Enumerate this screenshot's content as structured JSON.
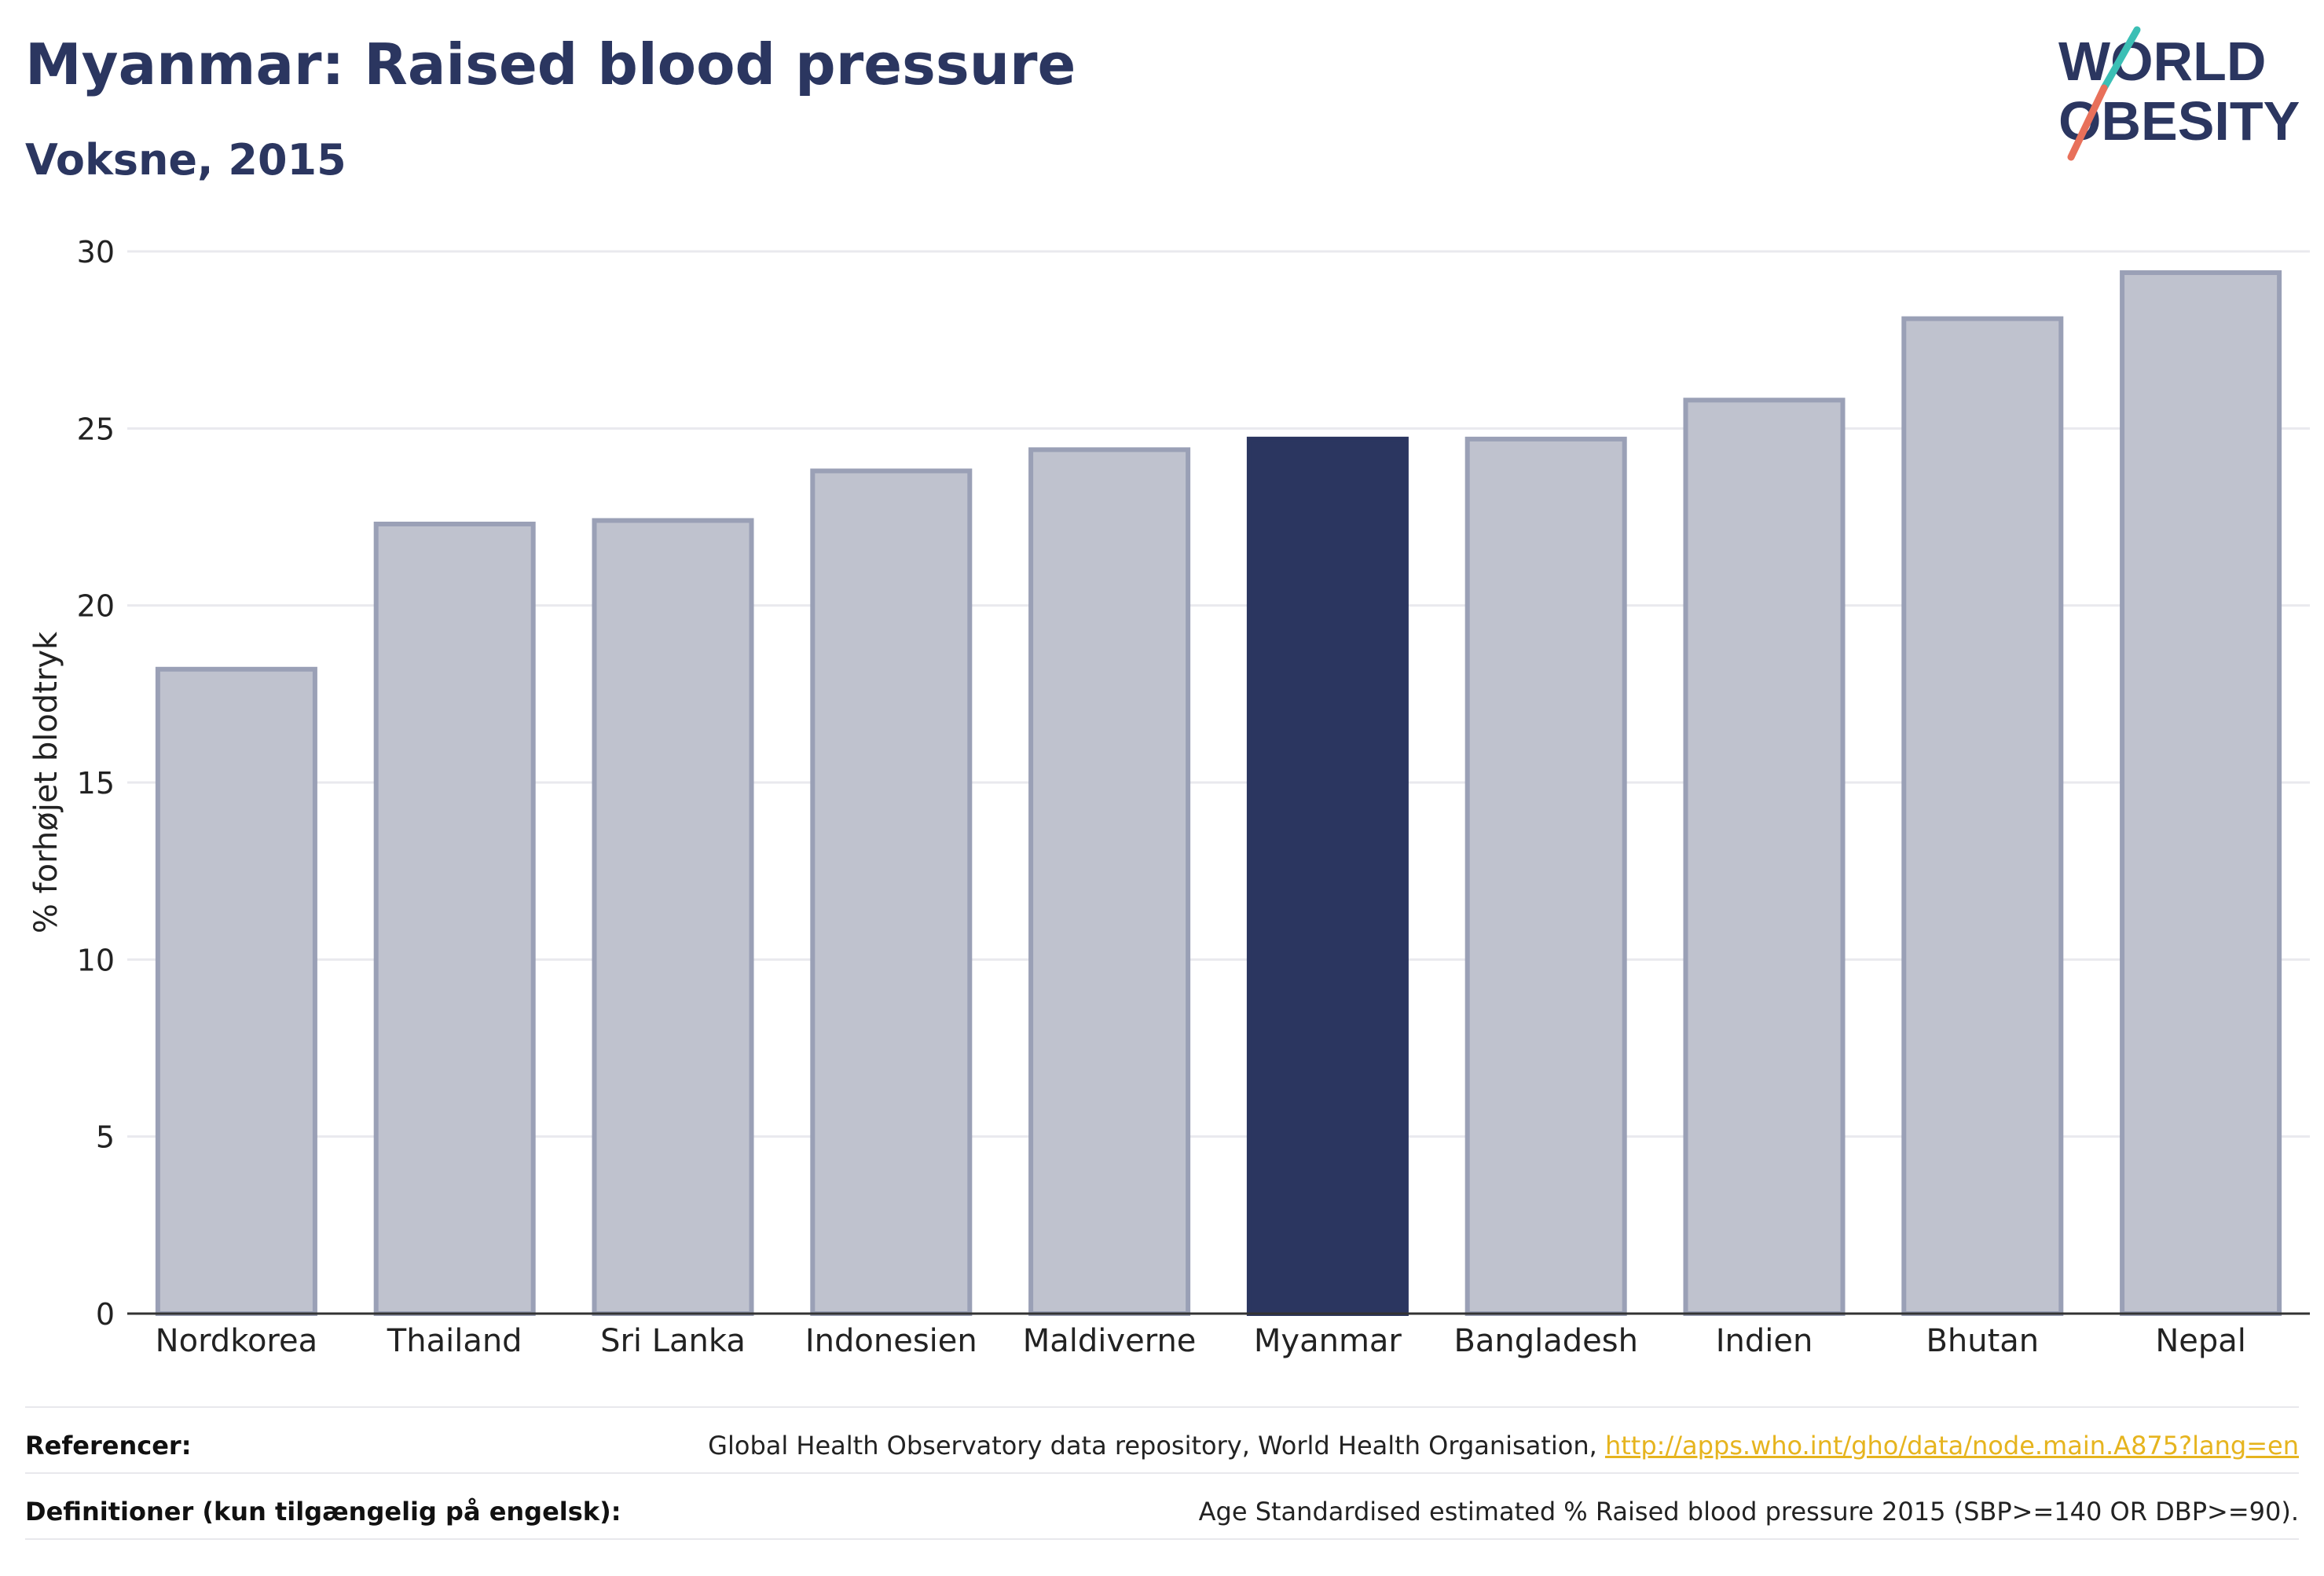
{
  "header": {
    "title": "Myanmar: Raised blood pressure",
    "subtitle": "Voksne, 2015"
  },
  "logo": {
    "line1": "WORLD",
    "line2": "OBESITY"
  },
  "colors": {
    "highlight": "#2b3660",
    "bar_fill": "#bfc2ce",
    "bar_stroke": "#9aa0b6",
    "grid": "#e9e9ee",
    "link": "#e6b41e",
    "logo_teal": "#3bbfb5",
    "logo_coral": "#e8705a"
  },
  "chart_data": {
    "type": "bar",
    "categories": [
      "Nordkorea",
      "Thailand",
      "Sri Lanka",
      "Indonesien",
      "Maldiverne",
      "Myanmar",
      "Bangladesh",
      "Indien",
      "Bhutan",
      "Nepal"
    ],
    "values": [
      18.2,
      22.3,
      22.4,
      23.8,
      24.4,
      24.7,
      24.7,
      25.8,
      28.1,
      29.4
    ],
    "highlight": "Myanmar",
    "ylabel": "% forhøjet blodtryk",
    "xlabel": "",
    "ylim": [
      0,
      30
    ],
    "yticks": [
      0,
      5,
      10,
      15,
      20,
      25,
      30
    ],
    "grid": true
  },
  "footer": {
    "references_label": "Referencer:",
    "references_text": "Global Health Observatory data repository, World Health Organisation, ",
    "references_link": "http://apps.who.int/gho/data/node.main.A875?lang=en",
    "definitions_label": "Definitioner (kun tilgængelig på engelsk):",
    "definitions_text": "Age Standardised estimated % Raised blood pressure 2015 (SBP>=140 OR DBP>=90)."
  }
}
